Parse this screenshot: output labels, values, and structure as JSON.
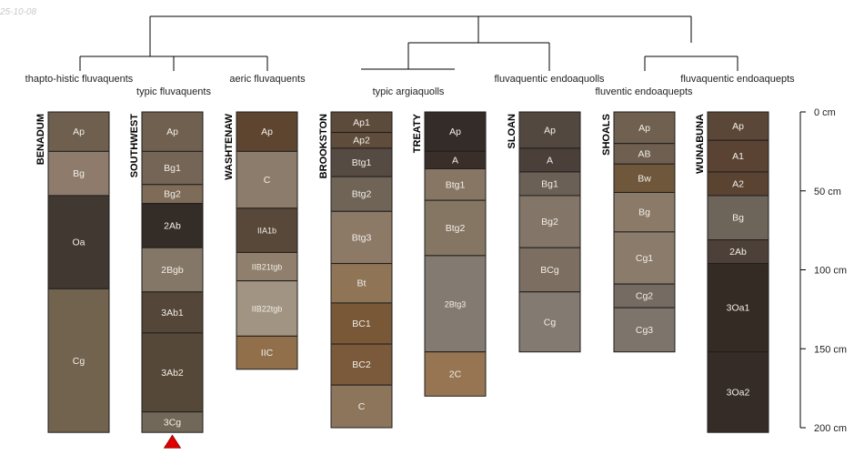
{
  "date_stamp": "25-10-08",
  "depth_axis": {
    "unit": "cm",
    "ticks": [
      0,
      50,
      100,
      150,
      200
    ],
    "tick_labels": [
      "0 cm",
      "50 cm",
      "100 cm",
      "150 cm",
      "200 cm"
    ]
  },
  "group_labels": [
    "thapto-histic fluvaquents",
    "typic fluvaquents",
    "aeric fluvaquents",
    "typic argiaquolls",
    "fluvaquentic endoaquolls",
    "fluventic endoaquepts",
    "fluvaquentic endoaquepts"
  ],
  "profiles": [
    {
      "name": "BENADUM",
      "horizons": [
        {
          "name": "Ap",
          "top": 0,
          "bottom": 25,
          "color": "#6e5f4e"
        },
        {
          "name": "Bg",
          "top": 25,
          "bottom": 53,
          "color": "#8e7b6b"
        },
        {
          "name": "Oa",
          "top": 53,
          "bottom": 112,
          "color": "#413831"
        },
        {
          "name": "Cg",
          "top": 112,
          "bottom": 203,
          "color": "#72634f"
        }
      ]
    },
    {
      "name": "SOUTHWEST",
      "marker": "triangle",
      "horizons": [
        {
          "name": "Ap",
          "top": 0,
          "bottom": 25,
          "color": "#6f6050"
        },
        {
          "name": "Bg1",
          "top": 25,
          "bottom": 46,
          "color": "#756556"
        },
        {
          "name": "Bg2",
          "top": 46,
          "bottom": 58,
          "color": "#7e6b58"
        },
        {
          "name": "2Ab",
          "top": 58,
          "bottom": 86,
          "color": "#342c27"
        },
        {
          "name": "2Bgb",
          "top": 86,
          "bottom": 114,
          "color": "#857767"
        },
        {
          "name": "3Ab1",
          "top": 114,
          "bottom": 140,
          "color": "#544638"
        },
        {
          "name": "3Ab2",
          "top": 140,
          "bottom": 190,
          "color": "#564838"
        },
        {
          "name": "3Cg",
          "top": 190,
          "bottom": 203,
          "color": "#716859"
        }
      ]
    },
    {
      "name": "WASHTENAW",
      "horizons": [
        {
          "name": "Ap",
          "top": 0,
          "bottom": 25,
          "color": "#5e4530"
        },
        {
          "name": "C",
          "top": 25,
          "bottom": 61,
          "color": "#8c7c6b"
        },
        {
          "name": "IIA1b",
          "top": 61,
          "bottom": 89,
          "color": "#574839"
        },
        {
          "name": "IIB21tgb",
          "top": 89,
          "bottom": 107,
          "color": "#8f7f6c"
        },
        {
          "name": "IIB22tgb",
          "top": 107,
          "bottom": 142,
          "color": "#a19483"
        },
        {
          "name": "IIC",
          "top": 142,
          "bottom": 163,
          "color": "#916f4a"
        }
      ]
    },
    {
      "name": "BROOKSTON",
      "horizons": [
        {
          "name": "Ap1",
          "top": 0,
          "bottom": 13,
          "color": "#5c4a3a"
        },
        {
          "name": "Ap2",
          "top": 13,
          "bottom": 23,
          "color": "#5f4c3b"
        },
        {
          "name": "Btg1",
          "top": 23,
          "bottom": 41,
          "color": "#564b43"
        },
        {
          "name": "Btg2",
          "top": 41,
          "bottom": 63,
          "color": "#6f6456"
        },
        {
          "name": "Btg3",
          "top": 63,
          "bottom": 96,
          "color": "#8c7966"
        },
        {
          "name": "Bt",
          "top": 96,
          "bottom": 121,
          "color": "#8f7456"
        },
        {
          "name": "BC1",
          "top": 121,
          "bottom": 147,
          "color": "#785837"
        },
        {
          "name": "BC2",
          "top": 147,
          "bottom": 173,
          "color": "#7a5a3a"
        },
        {
          "name": "C",
          "top": 173,
          "bottom": 200,
          "color": "#8c755a"
        }
      ]
    },
    {
      "name": "TREATY",
      "horizons": [
        {
          "name": "Ap",
          "top": 0,
          "bottom": 25,
          "color": "#342c28"
        },
        {
          "name": "A",
          "top": 25,
          "bottom": 36,
          "color": "#3a2f28"
        },
        {
          "name": "Btg1",
          "top": 36,
          "bottom": 56,
          "color": "#877664"
        },
        {
          "name": "Btg2",
          "top": 56,
          "bottom": 91,
          "color": "#857664"
        },
        {
          "name": "2Btg3",
          "top": 91,
          "bottom": 152,
          "color": "#837a71"
        },
        {
          "name": "2C",
          "top": 152,
          "bottom": 180,
          "color": "#977553"
        }
      ]
    },
    {
      "name": "SLOAN",
      "horizons": [
        {
          "name": "Ap",
          "top": 0,
          "bottom": 23,
          "color": "#524840"
        },
        {
          "name": "A",
          "top": 23,
          "bottom": 38,
          "color": "#4a4039"
        },
        {
          "name": "Bg1",
          "top": 38,
          "bottom": 53,
          "color": "#6b6055"
        },
        {
          "name": "Bg2",
          "top": 53,
          "bottom": 86,
          "color": "#837669"
        },
        {
          "name": "BCg",
          "top": 86,
          "bottom": 114,
          "color": "#7c6e61"
        },
        {
          "name": "Cg",
          "top": 114,
          "bottom": 152,
          "color": "#837a71"
        }
      ]
    },
    {
      "name": "SHOALS",
      "horizons": [
        {
          "name": "Ap",
          "top": 0,
          "bottom": 20,
          "color": "#6f6050"
        },
        {
          "name": "AB",
          "top": 20,
          "bottom": 33,
          "color": "#6e5f50"
        },
        {
          "name": "Bw",
          "top": 33,
          "bottom": 51,
          "color": "#6e573b"
        },
        {
          "name": "Bg",
          "top": 51,
          "bottom": 76,
          "color": "#8b7a68"
        },
        {
          "name": "Cg1",
          "top": 76,
          "bottom": 109,
          "color": "#8a7b6a"
        },
        {
          "name": "Cg2",
          "top": 109,
          "bottom": 124,
          "color": "#756b62"
        },
        {
          "name": "Cg3",
          "top": 124,
          "bottom": 152,
          "color": "#7d746b"
        }
      ]
    },
    {
      "name": "WUNABUNA",
      "horizons": [
        {
          "name": "Ap",
          "top": 0,
          "bottom": 18,
          "color": "#5a4738"
        },
        {
          "name": "A1",
          "top": 18,
          "bottom": 38,
          "color": "#5a4333"
        },
        {
          "name": "A2",
          "top": 38,
          "bottom": 53,
          "color": "#5b4332"
        },
        {
          "name": "Bg",
          "top": 53,
          "bottom": 81,
          "color": "#6d645a"
        },
        {
          "name": "2Ab",
          "top": 81,
          "bottom": 96,
          "color": "#4d4039"
        },
        {
          "name": "3Oa1",
          "top": 96,
          "bottom": 152,
          "color": "#352b25"
        },
        {
          "name": "3Oa2",
          "top": 152,
          "bottom": 203,
          "color": "#352c27"
        }
      ]
    }
  ]
}
